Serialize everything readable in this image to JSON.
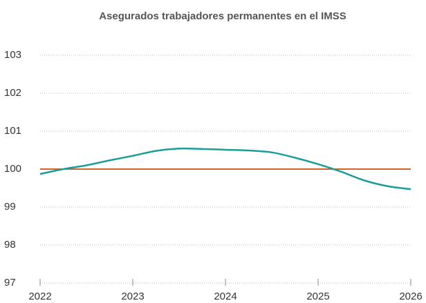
{
  "chart_data": {
    "type": "line",
    "title": "Asegurados trabajadores permanentes en el IMSS",
    "x": [
      2022,
      2022.25,
      2022.5,
      2022.75,
      2023,
      2023.25,
      2023.5,
      2023.75,
      2024,
      2024.25,
      2024.5,
      2024.75,
      2025,
      2025.25,
      2025.5,
      2025.75,
      2026
    ],
    "series": [
      {
        "color": "#1a9c98",
        "values": [
          99.87,
          100.0,
          100.1,
          100.23,
          100.35,
          100.48,
          100.54,
          100.53,
          100.51,
          100.49,
          100.44,
          100.3,
          100.13,
          99.93,
          99.7,
          99.55,
          99.47
        ]
      }
    ],
    "reference_line": {
      "value": 100,
      "color": "#d4622a"
    },
    "xlim": [
      2022,
      2026
    ],
    "xticks": [
      2022,
      2023,
      2024,
      2025,
      2026
    ],
    "ylim": [
      97,
      103
    ],
    "yticks": [
      97,
      98,
      99,
      100,
      101,
      102,
      103
    ],
    "grid": true
  }
}
